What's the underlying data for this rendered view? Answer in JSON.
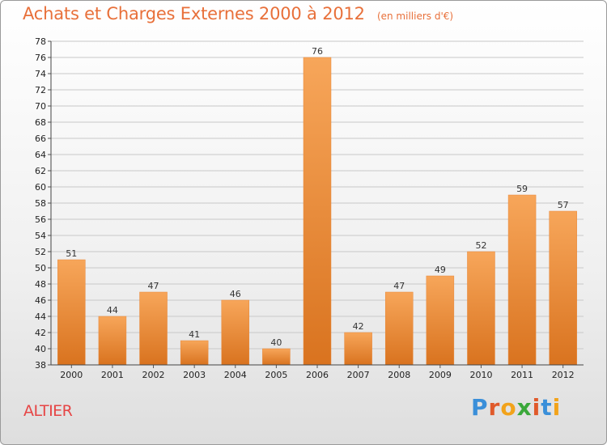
{
  "header": {
    "title": "Achats et Charges Externes 2000 à 2012",
    "subtitle": "(en milliers d'€)"
  },
  "footer": {
    "commune": "ALTIER",
    "brand_letters": [
      {
        "char": "P",
        "color": "#3a8fd9"
      },
      {
        "char": "r",
        "color": "#e05a2b"
      },
      {
        "char": "o",
        "color": "#f2a31b"
      },
      {
        "char": "x",
        "color": "#3aa83a"
      },
      {
        "char": "i",
        "color": "#e05a2b"
      },
      {
        "char": "t",
        "color": "#3a8fd9"
      },
      {
        "char": "i",
        "color": "#f2a31b"
      }
    ]
  },
  "colors": {
    "bar_light": "#f7a65a",
    "bar_dark": "#d9731f",
    "grid": "#c8c8c8"
  },
  "chart_data": {
    "type": "bar",
    "title": "Achats et Charges Externes 2000 à 2012",
    "subtitle": "(en milliers d'€)",
    "categories": [
      "2000",
      "2001",
      "2002",
      "2003",
      "2004",
      "2005",
      "2006",
      "2007",
      "2008",
      "2009",
      "2010",
      "2011",
      "2012"
    ],
    "values": [
      51,
      44,
      47,
      41,
      46,
      40,
      76,
      42,
      47,
      49,
      52,
      59,
      57
    ],
    "value_labels": [
      "51",
      "44",
      "47",
      "41",
      "46",
      "40",
      "76",
      "42",
      "47",
      "49",
      "52",
      "59",
      "57"
    ],
    "ylim": [
      38,
      78
    ],
    "yticks": [
      "38",
      "40",
      "42",
      "44",
      "46",
      "48",
      "50",
      "52",
      "54",
      "56",
      "58",
      "60",
      "62",
      "64",
      "66",
      "68",
      "70",
      "72",
      "74",
      "76",
      "78"
    ],
    "grid": true,
    "legend": "none"
  }
}
